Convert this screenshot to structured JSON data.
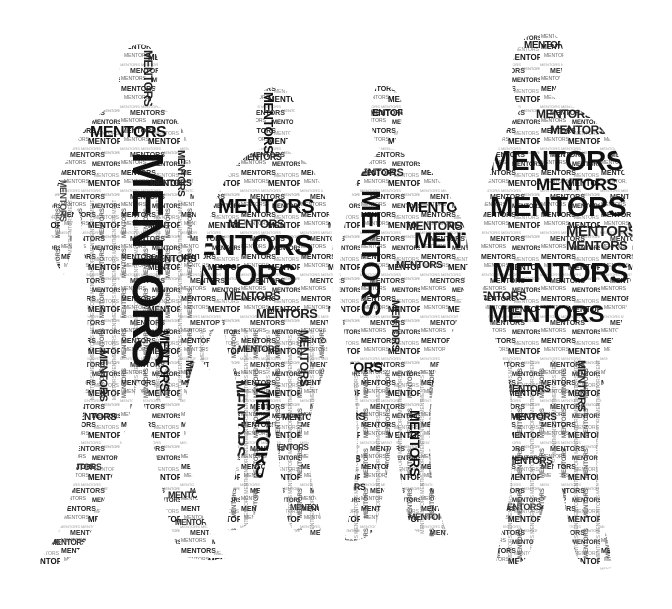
{
  "word": "MENTORS",
  "colors": {
    "background": "#ffffff",
    "ink_dark": "#111111",
    "ink_mid": "#555555",
    "ink_light": "#9a9a9a"
  },
  "figures": [
    {
      "name": "figure-1-man-walking-left"
    },
    {
      "name": "figure-2-man-center-left"
    },
    {
      "name": "figure-3-man-center-right"
    },
    {
      "name": "figure-4-man-right-tall"
    }
  ]
}
